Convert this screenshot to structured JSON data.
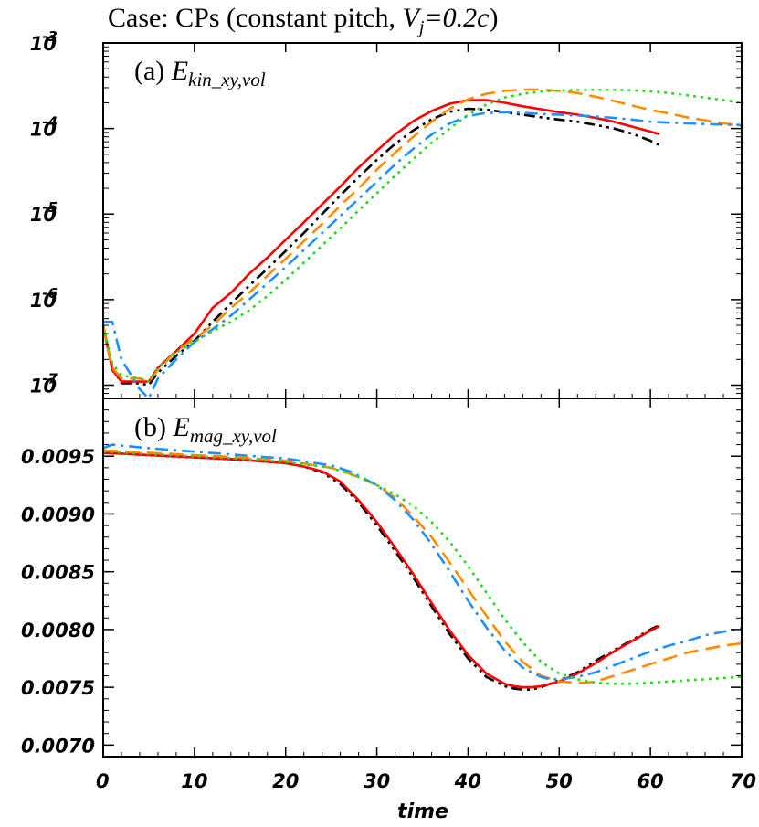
{
  "figure": {
    "title_prefix": "Case: CPs (constant pitch, ",
    "title_var": "V",
    "title_var_sub": "j",
    "title_eq": "=0.2",
    "title_c": "c",
    "title_suffix": ")"
  },
  "chart_data": [
    {
      "type": "line",
      "panel_label": "(a)",
      "var_main": "E",
      "var_sub": "kin_xy,vol",
      "xlabel": "",
      "ylabel": "",
      "xlim": [
        0,
        70
      ],
      "ylim": [
        7e-08,
        0.001
      ],
      "yscale": "log",
      "xticks": [
        0,
        10,
        20,
        30,
        40,
        50,
        60,
        70
      ],
      "yticks": [
        {
          "base": "10",
          "exp": "-3",
          "value": 0.001
        },
        {
          "base": "10",
          "exp": "-4",
          "value": 0.0001
        },
        {
          "base": "10",
          "exp": "-5",
          "value": 1e-05
        },
        {
          "base": "10",
          "exp": "-6",
          "value": 1e-06
        },
        {
          "base": "10",
          "exp": "-7",
          "value": 1e-07
        }
      ],
      "series": [
        {
          "color": "#000000",
          "dash": "dashdotdot",
          "x": [
            0,
            1,
            2,
            4,
            5,
            6,
            8,
            10,
            12,
            14,
            16,
            18,
            20,
            22,
            24,
            26,
            28,
            30,
            32,
            34,
            36,
            38,
            40,
            42,
            44,
            46,
            48,
            50,
            52,
            54,
            56,
            58,
            60,
            61
          ],
          "y": [
            5e-07,
            1.6e-07,
            1.05e-07,
            1.05e-07,
            1e-07,
            1.4e-07,
            2.2e-07,
            3.3e-07,
            5.5e-07,
            9e-07,
            1.45e-06,
            2.3e-06,
            3.7e-06,
            6e-06,
            1e-05,
            1.65e-05,
            2.7e-05,
            4.3e-05,
            6.6e-05,
            9.5e-05,
            0.000128,
            0.000157,
            0.00017,
            0.000166,
            0.000155,
            0.000145,
            0.000135,
            0.000127,
            0.00012,
            0.00011,
            0.0001,
            8.7e-05,
            7.2e-05,
            6.4e-05
          ]
        },
        {
          "color": "#ff0000",
          "dash": "solid",
          "x": [
            0,
            1,
            2,
            4,
            5,
            6,
            8,
            10,
            12,
            14,
            16,
            18,
            20,
            22,
            24,
            26,
            28,
            30,
            32,
            34,
            36,
            38,
            40,
            42,
            44,
            46,
            48,
            50,
            52,
            54,
            56,
            58,
            60,
            61
          ],
          "y": [
            5e-07,
            1.5e-07,
            1.1e-07,
            1.1e-07,
            1.1e-07,
            1.6e-07,
            2.5e-07,
            4e-07,
            8e-07,
            1.2e-06,
            2e-06,
            3.1e-06,
            5e-06,
            8e-06,
            1.3e-05,
            2.1e-05,
            3.5e-05,
            5.5e-05,
            8.5e-05,
            0.000122,
            0.00016,
            0.000195,
            0.000215,
            0.000215,
            0.0002,
            0.000182,
            0.000168,
            0.000155,
            0.000145,
            0.000133,
            0.00012,
            0.000105,
            9.2e-05,
            8.6e-05
          ]
        },
        {
          "color": "#ff8c00",
          "dash": "dash",
          "x": [
            0,
            1,
            2,
            4,
            5,
            6,
            8,
            10,
            12,
            14,
            16,
            18,
            20,
            22,
            24,
            26,
            28,
            30,
            32,
            34,
            36,
            38,
            40,
            42,
            44,
            46,
            48,
            50,
            52,
            54,
            56,
            58,
            60,
            62,
            64,
            66,
            68,
            70
          ],
          "y": [
            5e-07,
            1.6e-07,
            1.2e-07,
            1.2e-07,
            1.1e-07,
            1.5e-07,
            2.5e-07,
            3.5e-07,
            5e-07,
            8e-07,
            1.2e-06,
            1.9e-06,
            3e-06,
            4.8e-06,
            7.7e-06,
            1.25e-05,
            2e-05,
            3.3e-05,
            5.2e-05,
            8e-05,
            0.00012,
            0.00017,
            0.00022,
            0.000255,
            0.000275,
            0.000285,
            0.000285,
            0.000275,
            0.00026,
            0.000235,
            0.00021,
            0.000185,
            0.000165,
            0.00015,
            0.000135,
            0.000125,
            0.000115,
            0.000107
          ]
        },
        {
          "color": "#1e90ff",
          "dash": "dashdot",
          "x": [
            0,
            1,
            2,
            4,
            5,
            6,
            8,
            10,
            12,
            14,
            16,
            18,
            20,
            22,
            24,
            26,
            28,
            30,
            32,
            34,
            36,
            38,
            40,
            42,
            44,
            46,
            48,
            50,
            52,
            54,
            56,
            58,
            60,
            62,
            64,
            66,
            68,
            70
          ],
          "y": [
            5.5e-07,
            5.5e-07,
            2e-07,
            9e-08,
            7e-08,
            1.2e-07,
            2e-07,
            3.2e-07,
            4.5e-07,
            6.5e-07,
            1e-06,
            1.55e-06,
            2.4e-06,
            3.8e-06,
            6e-06,
            9.5e-06,
            1.5e-05,
            2.4e-05,
            3.8e-05,
            5.8e-05,
            8.5e-05,
            0.000115,
            0.00014,
            0.000152,
            0.000155,
            0.000152,
            0.000148,
            0.000145,
            0.000142,
            0.000138,
            0.000133,
            0.000127,
            0.00012,
            0.000117,
            0.000115,
            0.000113,
            0.000111,
            0.00011
          ]
        },
        {
          "color": "#22dd22",
          "dash": "dot",
          "x": [
            0,
            1,
            2,
            4,
            5,
            6,
            8,
            10,
            12,
            14,
            16,
            18,
            20,
            22,
            24,
            26,
            28,
            30,
            32,
            34,
            36,
            38,
            40,
            42,
            44,
            46,
            48,
            50,
            52,
            54,
            56,
            58,
            60,
            62,
            64,
            66,
            68,
            70
          ],
          "y": [
            5e-07,
            1.8e-07,
            1.3e-07,
            1.2e-07,
            1.1e-07,
            1.6e-07,
            2.4e-07,
            3.2e-07,
            4.3e-07,
            5.5e-07,
            7.5e-07,
            1.1e-06,
            1.7e-06,
            2.7e-06,
            4.3e-06,
            6.8e-06,
            1.1e-05,
            1.75e-05,
            2.8e-05,
            4.4e-05,
            6.8e-05,
            0.0001,
            0.000145,
            0.00019,
            0.00023,
            0.000255,
            0.00027,
            0.000278,
            0.000282,
            0.000283,
            0.000283,
            0.00028,
            0.000272,
            0.00026,
            0.000245,
            0.00023,
            0.000215,
            0.0002
          ]
        }
      ]
    },
    {
      "type": "line",
      "panel_label": "(b)",
      "var_main": "E",
      "var_sub": "mag_xy,vol",
      "xlabel": "time",
      "ylabel": "",
      "xlim": [
        0,
        70
      ],
      "ylim": [
        0.0069,
        0.01
      ],
      "xticks": [
        "0",
        "10",
        "20",
        "30",
        "40",
        "50",
        "60",
        "70"
      ],
      "yticks": [
        "0.0070",
        "0.0075",
        "0.0080",
        "0.0085",
        "0.0090",
        "0.0095"
      ],
      "series": [
        {
          "color": "#000000",
          "dash": "dashdotdot",
          "x": [
            0,
            5,
            10,
            15,
            20,
            22,
            24,
            26,
            28,
            30,
            32,
            34,
            36,
            38,
            40,
            42,
            44,
            45,
            46,
            47,
            48,
            50,
            52,
            54,
            56,
            58,
            60,
            61
          ],
          "y": [
            0.00953,
            0.00951,
            0.00949,
            0.00947,
            0.00944,
            0.00941,
            0.00936,
            0.00926,
            0.0091,
            0.0089,
            0.00868,
            0.00845,
            0.0082,
            0.00796,
            0.00775,
            0.00759,
            0.00751,
            0.00749,
            0.00748,
            0.00748,
            0.0075,
            0.00756,
            0.00763,
            0.00773,
            0.00782,
            0.00791,
            0.008,
            0.00804
          ]
        },
        {
          "color": "#ff0000",
          "dash": "solid",
          "x": [
            0,
            5,
            10,
            15,
            20,
            22,
            24,
            26,
            28,
            30,
            32,
            34,
            36,
            38,
            40,
            42,
            44,
            45,
            46,
            47,
            48,
            50,
            52,
            54,
            56,
            58,
            60,
            61
          ],
          "y": [
            0.00953,
            0.00951,
            0.00949,
            0.00947,
            0.00944,
            0.00941,
            0.00937,
            0.00928,
            0.00912,
            0.00893,
            0.00871,
            0.00848,
            0.00823,
            0.00799,
            0.00778,
            0.00762,
            0.00753,
            0.00751,
            0.0075,
            0.0075,
            0.00751,
            0.00755,
            0.00762,
            0.00771,
            0.00781,
            0.0079,
            0.00799,
            0.00803
          ]
        },
        {
          "color": "#ff8c00",
          "dash": "dash",
          "x": [
            0,
            5,
            10,
            15,
            20,
            25,
            27,
            30,
            32,
            34,
            36,
            38,
            40,
            42,
            44,
            46,
            48,
            50,
            52,
            53,
            54,
            56,
            58,
            60,
            62,
            64,
            66,
            68,
            70
          ],
          "y": [
            0.00955,
            0.00953,
            0.00951,
            0.00949,
            0.00946,
            0.0094,
            0.00935,
            0.00925,
            0.00914,
            0.00898,
            0.0088,
            0.00858,
            0.00835,
            0.00812,
            0.0079,
            0.00772,
            0.0076,
            0.00755,
            0.00754,
            0.00754,
            0.00755,
            0.0076,
            0.00765,
            0.0077,
            0.00775,
            0.0078,
            0.00783,
            0.00786,
            0.00788
          ]
        },
        {
          "color": "#1e90ff",
          "dash": "dashdot",
          "x": [
            0,
            1,
            5,
            10,
            15,
            20,
            25,
            27,
            30,
            32,
            34,
            36,
            38,
            40,
            42,
            44,
            46,
            48,
            49,
            50,
            52,
            54,
            56,
            58,
            60,
            62,
            64,
            66,
            68,
            70
          ],
          "y": [
            0.00957,
            0.0096,
            0.00957,
            0.00954,
            0.00951,
            0.00948,
            0.00942,
            0.00937,
            0.00925,
            0.00912,
            0.00895,
            0.00874,
            0.0085,
            0.00825,
            0.00802,
            0.00782,
            0.00767,
            0.00759,
            0.00757,
            0.00757,
            0.00759,
            0.00763,
            0.00769,
            0.00775,
            0.00781,
            0.00786,
            0.0079,
            0.00795,
            0.00798,
            0.00801
          ]
        },
        {
          "color": "#22dd22",
          "dash": "dot",
          "x": [
            0,
            5,
            10,
            15,
            20,
            25,
            28,
            30,
            32,
            34,
            36,
            38,
            40,
            42,
            44,
            46,
            48,
            50,
            52,
            54,
            56,
            58,
            60,
            62,
            64,
            66,
            68,
            70
          ],
          "y": [
            0.00954,
            0.00952,
            0.0095,
            0.00948,
            0.00945,
            0.0094,
            0.00932,
            0.00925,
            0.00917,
            0.00907,
            0.00893,
            0.00876,
            0.00855,
            0.00832,
            0.00809,
            0.00789,
            0.00772,
            0.00762,
            0.00757,
            0.00754,
            0.00753,
            0.00753,
            0.00754,
            0.00755,
            0.00756,
            0.00757,
            0.00758,
            0.00759
          ]
        }
      ]
    }
  ]
}
